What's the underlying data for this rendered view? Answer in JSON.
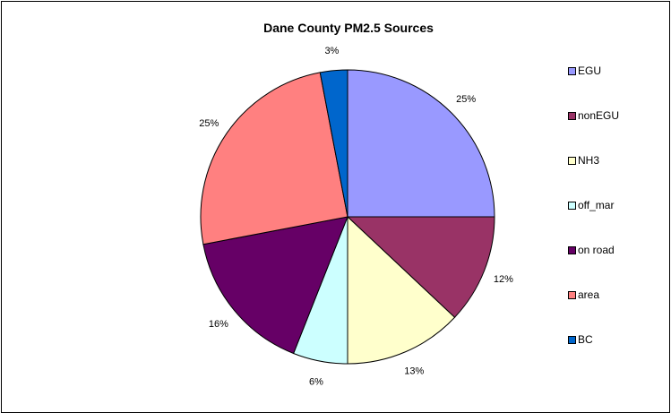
{
  "chart_data": {
    "type": "pie",
    "title": "Dane County PM2.5 Sources",
    "legend_position": "right",
    "slices": [
      {
        "name": "EGU",
        "value": 25,
        "label": "25%",
        "color": "#9999FF"
      },
      {
        "name": "nonEGU",
        "value": 12,
        "label": "12%",
        "color": "#993366"
      },
      {
        "name": "NH3",
        "value": 13,
        "label": "13%",
        "color": "#FFFFCC"
      },
      {
        "name": "off_mar",
        "value": 6,
        "label": "6%",
        "color": "#CCFFFF"
      },
      {
        "name": "on road",
        "value": 16,
        "label": "16%",
        "color": "#660066"
      },
      {
        "name": "area",
        "value": 25,
        "label": "25%",
        "color": "#FF8080"
      },
      {
        "name": "BC",
        "value": 3,
        "label": "3%",
        "color": "#0066CC"
      }
    ]
  }
}
